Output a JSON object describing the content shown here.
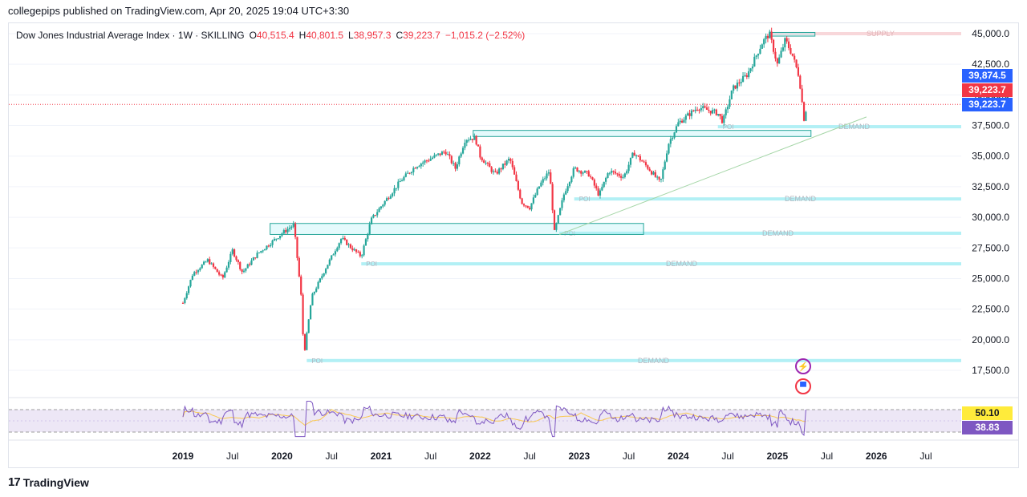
{
  "header": {
    "published": "collegepips published on TradingView.com, Apr 20, 2025 19:04 UTC+3:30"
  },
  "legend": {
    "symbol": "Dow Jones Industrial Average Index · 1W · SKILLING",
    "open_label": "O",
    "open": "40,515.4",
    "high_label": "H",
    "high": "40,801.5",
    "low_label": "L",
    "low": "38,957.3",
    "close_label": "C",
    "close": "39,223.7",
    "change": "−1,015.2 (−2.52%)"
  },
  "price_badges": [
    {
      "text": "39,874.5",
      "color": "#2962ff"
    },
    {
      "text": "39,223.7",
      "color": "#f23645"
    },
    {
      "text": "39,223.7",
      "color": "#2962ff"
    }
  ],
  "rsi_badges": [
    {
      "text": "50.10",
      "color": "#ffeb3b",
      "text_color": "#131722"
    },
    {
      "text": "38.83",
      "color": "#7e57c2",
      "text_color": "#ffffff"
    }
  ],
  "zone_labels": {
    "supply": "SUPPLY",
    "demand": "DEMAND",
    "poi": "POI"
  },
  "footer": {
    "brand": "TradingView",
    "logo_mark": "17"
  },
  "event_icons": [
    "lightning-icon",
    "us-flag-icon"
  ],
  "colors": {
    "up": "#26a69a",
    "down": "#f23645",
    "zone": "#b2f0f5",
    "rsi": "#7e57c2",
    "rsi_ma": "#f9c74f"
  },
  "chart_data": {
    "type": "candlestick",
    "timeframe": "1W",
    "y_axis": {
      "min": 15000,
      "max": 46000,
      "ticks": [
        "17,500.0",
        "20,000.0",
        "22,500.0",
        "25,000.0",
        "27,500.0",
        "30,000.0",
        "32,500.0",
        "35,000.0",
        "37,500.0",
        "40,000.0",
        "42,500.0",
        "45,000.0"
      ]
    },
    "x_axis": {
      "ticks": [
        "2019",
        "Jul",
        "2020",
        "Jul",
        "2021",
        "Jul",
        "2022",
        "Jul",
        "2023",
        "Jul",
        "2024",
        "Jul",
        "2025",
        "Jul",
        "2026",
        "Jul"
      ],
      "year_ticks": [
        "2019",
        "2020",
        "2021",
        "2022",
        "2023",
        "2024",
        "2025",
        "2026"
      ]
    },
    "price_path": [
      [
        2019.0,
        23000
      ],
      [
        2019.1,
        25400
      ],
      [
        2019.25,
        26500
      ],
      [
        2019.4,
        25000
      ],
      [
        2019.5,
        27300
      ],
      [
        2019.6,
        25500
      ],
      [
        2019.75,
        27000
      ],
      [
        2019.9,
        28000
      ],
      [
        2020.0,
        28700
      ],
      [
        2020.12,
        29400
      ],
      [
        2020.2,
        23000
      ],
      [
        2020.22,
        18600
      ],
      [
        2020.3,
        23500
      ],
      [
        2020.45,
        26000
      ],
      [
        2020.6,
        28300
      ],
      [
        2020.7,
        27500
      ],
      [
        2020.8,
        26800
      ],
      [
        2020.9,
        29800
      ],
      [
        2021.0,
        30900
      ],
      [
        2021.2,
        33000
      ],
      [
        2021.35,
        34200
      ],
      [
        2021.5,
        34800
      ],
      [
        2021.65,
        35400
      ],
      [
        2021.75,
        34000
      ],
      [
        2021.85,
        36400
      ],
      [
        2021.95,
        36500
      ],
      [
        2022.0,
        35000
      ],
      [
        2022.15,
        33500
      ],
      [
        2022.3,
        34800
      ],
      [
        2022.42,
        31200
      ],
      [
        2022.5,
        30800
      ],
      [
        2022.6,
        32600
      ],
      [
        2022.7,
        33800
      ],
      [
        2022.75,
        28800
      ],
      [
        2022.85,
        32000
      ],
      [
        2022.95,
        34000
      ],
      [
        2023.1,
        33500
      ],
      [
        2023.2,
        31800
      ],
      [
        2023.3,
        33800
      ],
      [
        2023.45,
        33300
      ],
      [
        2023.55,
        35300
      ],
      [
        2023.7,
        34000
      ],
      [
        2023.82,
        32800
      ],
      [
        2023.9,
        36000
      ],
      [
        2024.0,
        37700
      ],
      [
        2024.2,
        39000
      ],
      [
        2024.4,
        38500
      ],
      [
        2024.45,
        37800
      ],
      [
        2024.55,
        40500
      ],
      [
        2024.7,
        41700
      ],
      [
        2024.85,
        44300
      ],
      [
        2024.92,
        45000
      ],
      [
        2025.0,
        42500
      ],
      [
        2025.08,
        44500
      ],
      [
        2025.15,
        43300
      ],
      [
        2025.22,
        41500
      ],
      [
        2025.27,
        38000
      ],
      [
        2025.3,
        39223.7
      ]
    ],
    "demand_zones": [
      {
        "label": "DEMAND",
        "price": 18300
      },
      {
        "label": "DEMAND",
        "price": 26200
      },
      {
        "label": "DEMAND",
        "price": 28700
      },
      {
        "label": "DEMAND",
        "price": 31500
      },
      {
        "label": "DEMAND",
        "price": 37400
      }
    ],
    "supply_zone": {
      "label": "SUPPLY",
      "price": 45000
    },
    "boxes": [
      {
        "x_from": 2019.88,
        "x_to": 2023.65,
        "y_low": 28600,
        "y_high": 29500
      },
      {
        "x_from": 2021.93,
        "x_to": 2025.34,
        "y_low": 36600,
        "y_high": 37100
      },
      {
        "x_from": 2024.92,
        "x_to": 2025.38,
        "y_low": 44800,
        "y_high": 45100
      }
    ],
    "trendline": {
      "from": [
        2022.8,
        28600
      ],
      "to": [
        2025.9,
        38200
      ]
    },
    "current_price": 39223.7,
    "rsi": {
      "value": 38.83,
      "ma": 50.1,
      "upper": 70,
      "lower": 30
    }
  }
}
